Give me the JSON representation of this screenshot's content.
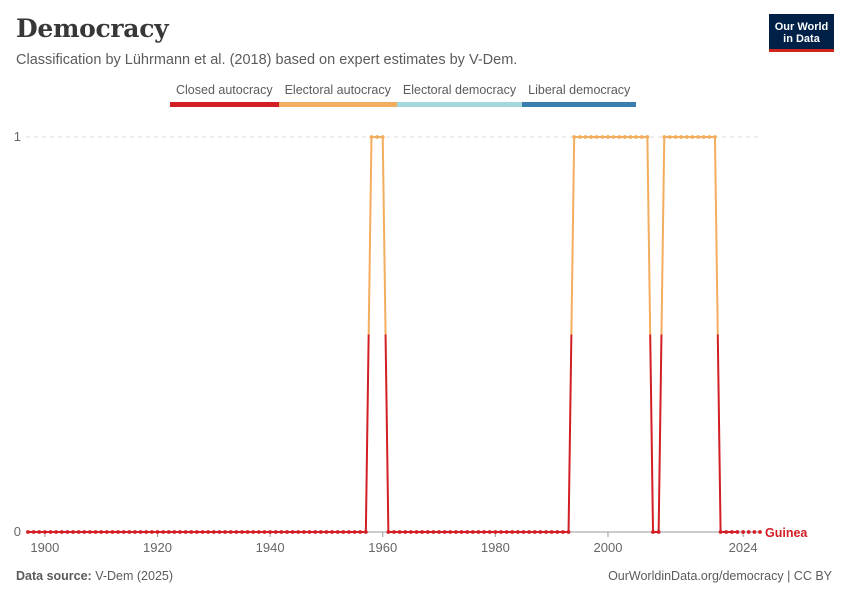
{
  "header": {
    "title": "Democracy",
    "subtitle": "Classification by Lührmann et al. (2018) based on expert estimates by V-Dem.",
    "logo_line1": "Our World",
    "logo_line2": "in Data"
  },
  "legend": [
    {
      "label": "Closed autocracy",
      "color": "#d21e24"
    },
    {
      "label": "Electoral autocracy",
      "color": "#f3ad5e"
    },
    {
      "label": "Electoral democracy",
      "color": "#a4d8de"
    },
    {
      "label": "Liberal democracy",
      "color": "#3a7eb0"
    }
  ],
  "footer": {
    "source_prefix": "Data source:",
    "source": "V-Dem (2025)",
    "right": "OurWorldinData.org/democracy | CC BY"
  },
  "chart_data": {
    "type": "line",
    "xlim": [
      1897,
      2027
    ],
    "ylim": [
      0,
      1
    ],
    "x_ticks": [
      "1900",
      "1920",
      "1940",
      "1960",
      "1980",
      "2000",
      "2024"
    ],
    "y_ticks": [
      "0",
      "1"
    ],
    "grid": true,
    "series": [
      {
        "name": "Guinea",
        "color": "#d21e24",
        "x_start": 1897,
        "x_end": 2027,
        "segments": [
          {
            "from": 1897,
            "to": 1957,
            "value": 0
          },
          {
            "from": 1958,
            "to": 1960,
            "value": 1
          },
          {
            "from": 1961,
            "to": 1993,
            "value": 0
          },
          {
            "from": 1994,
            "to": 2007,
            "value": 1
          },
          {
            "from": 2008,
            "to": 2009,
            "value": 0
          },
          {
            "from": 2010,
            "to": 2019,
            "value": 1
          },
          {
            "from": 2020,
            "to": 2023,
            "value": 0
          }
        ]
      }
    ],
    "category_colors": {
      "0": "#d21e24",
      "1": "#f3ad5e"
    }
  }
}
